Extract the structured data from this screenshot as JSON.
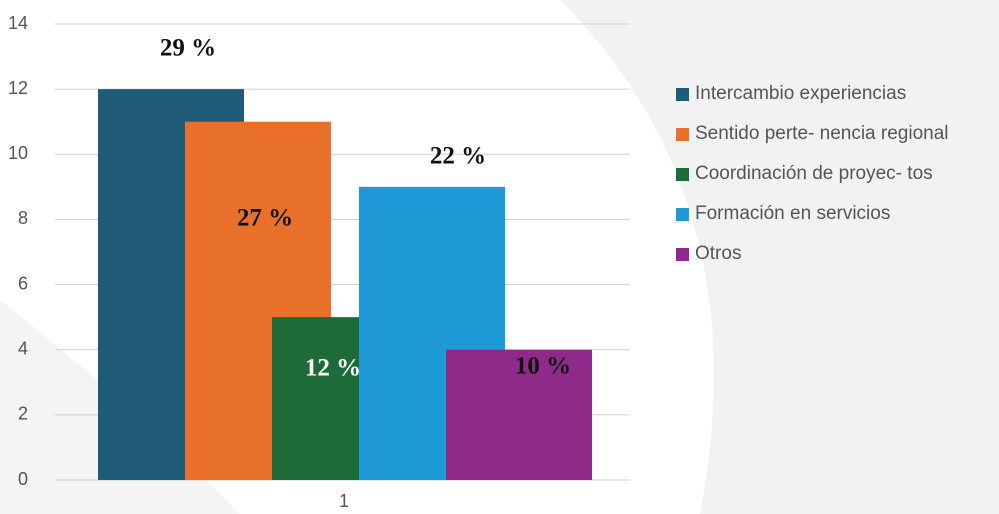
{
  "chart_data": {
    "type": "bar",
    "categories": [
      "1"
    ],
    "series": [
      {
        "name": "Intercambio  experiencias",
        "color": "#1f5c7a",
        "values": [
          12
        ]
      },
      {
        "name": "Sentido perte- nencia regional",
        "color": "#e8702a",
        "values": [
          11
        ]
      },
      {
        "name": "Coordinación de proyec- tos",
        "color": "#1e6b3a",
        "values": [
          5
        ]
      },
      {
        "name": "Formación en servicios",
        "color": "#1e9bd7",
        "values": [
          9
        ]
      },
      {
        "name": "Otros",
        "color": "#8e2a8a",
        "values": [
          4
        ]
      }
    ],
    "annotations": [
      "29 %",
      "27 %",
      "12 %",
      "22 %",
      "10 %"
    ],
    "ylim": [
      0,
      14
    ],
    "yticks": [
      0,
      2,
      4,
      6,
      8,
      10,
      12,
      14
    ],
    "grid": true,
    "legend": "right"
  }
}
